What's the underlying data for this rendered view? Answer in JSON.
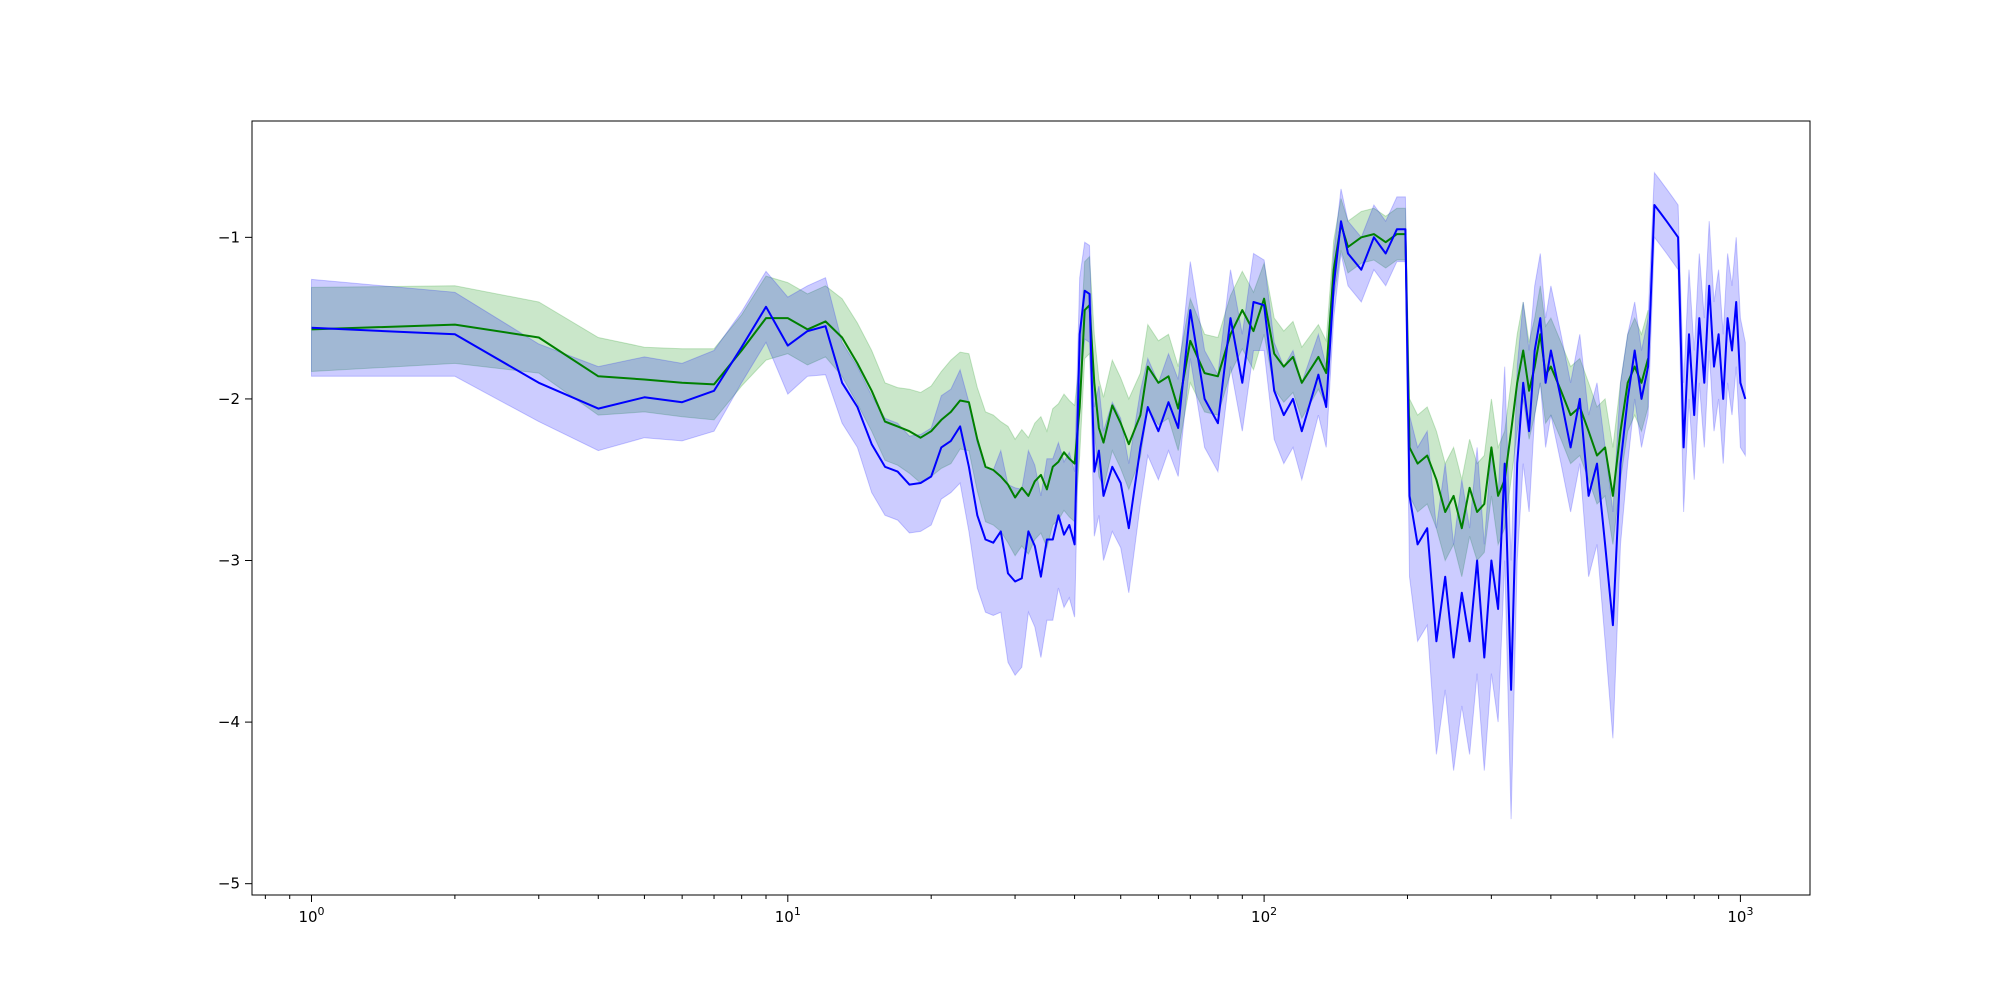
{
  "chart_data": {
    "type": "line",
    "xscale": "log",
    "xlim": [
      0.75,
      1400
    ],
    "ylim": [
      -5.07,
      -0.28
    ],
    "grid": false,
    "x_major_ticks": [
      {
        "value": 1,
        "base": "10",
        "exp": "0"
      },
      {
        "value": 10,
        "base": "10",
        "exp": "1"
      },
      {
        "value": 100,
        "base": "10",
        "exp": "2"
      },
      {
        "value": 1000,
        "base": "10",
        "exp": "3"
      }
    ],
    "y_ticks": [
      {
        "value": -1,
        "label": "−1"
      },
      {
        "value": -2,
        "label": "−2"
      },
      {
        "value": -3,
        "label": "−3"
      },
      {
        "value": -4,
        "label": "−4"
      },
      {
        "value": -5,
        "label": "−5"
      }
    ],
    "series": [
      {
        "color": "#008000",
        "band_color": "#2ca02c",
        "band_opacity": 0.25,
        "points": [
          [
            1,
            -1.57,
            0.26
          ],
          [
            2,
            -1.54,
            0.24
          ],
          [
            3,
            -1.62,
            0.22
          ],
          [
            4,
            -1.86,
            0.24
          ],
          [
            5,
            -1.88,
            0.2
          ],
          [
            6,
            -1.9,
            0.21
          ],
          [
            7,
            -1.91,
            0.22
          ],
          [
            8,
            -1.7,
            0.22
          ],
          [
            9,
            -1.5,
            0.26
          ],
          [
            10,
            -1.5,
            0.22
          ],
          [
            11,
            -1.57,
            0.22
          ],
          [
            12,
            -1.52,
            0.22
          ],
          [
            13,
            -1.62,
            0.24
          ],
          [
            14,
            -1.78,
            0.25
          ],
          [
            15,
            -1.95,
            0.25
          ],
          [
            16,
            -2.14,
            0.24
          ],
          [
            17,
            -2.17,
            0.24
          ],
          [
            18,
            -2.2,
            0.26
          ],
          [
            19,
            -2.24,
            0.28
          ],
          [
            20,
            -2.2,
            0.28
          ],
          [
            21,
            -2.13,
            0.3
          ],
          [
            22,
            -2.08,
            0.32
          ],
          [
            23,
            -2.01,
            0.3
          ],
          [
            24,
            -2.02,
            0.3
          ],
          [
            25,
            -2.25,
            0.32
          ],
          [
            26,
            -2.42,
            0.34
          ],
          [
            27,
            -2.44,
            0.34
          ],
          [
            28,
            -2.48,
            0.34
          ],
          [
            29,
            -2.53,
            0.36
          ],
          [
            30,
            -2.61,
            0.36
          ],
          [
            31,
            -2.55,
            0.36
          ],
          [
            32,
            -2.6,
            0.36
          ],
          [
            33,
            -2.51,
            0.36
          ],
          [
            34,
            -2.47,
            0.36
          ],
          [
            35,
            -2.56,
            0.36
          ],
          [
            36,
            -2.42,
            0.36
          ],
          [
            37,
            -2.39,
            0.36
          ],
          [
            38,
            -2.33,
            0.36
          ],
          [
            39,
            -2.37,
            0.36
          ],
          [
            40,
            -2.4,
            0.36
          ],
          [
            41,
            -2.05,
            0.3
          ],
          [
            42,
            -1.45,
            0.3
          ],
          [
            43,
            -1.42,
            0.3
          ],
          [
            44,
            -1.9,
            0.3
          ],
          [
            45,
            -2.18,
            0.3
          ],
          [
            46,
            -2.27,
            0.28
          ],
          [
            48,
            -2.04,
            0.28
          ],
          [
            50,
            -2.15,
            0.28
          ],
          [
            52,
            -2.28,
            0.28
          ],
          [
            55,
            -2.1,
            0.26
          ],
          [
            57,
            -1.8,
            0.26
          ],
          [
            60,
            -1.9,
            0.26
          ],
          [
            63,
            -1.86,
            0.26
          ],
          [
            66,
            -2.06,
            0.26
          ],
          [
            70,
            -1.64,
            0.26
          ],
          [
            75,
            -1.84,
            0.24
          ],
          [
            80,
            -1.86,
            0.24
          ],
          [
            85,
            -1.6,
            0.24
          ],
          [
            90,
            -1.45,
            0.24
          ],
          [
            95,
            -1.58,
            0.24
          ],
          [
            100,
            -1.38,
            0.22
          ],
          [
            105,
            -1.72,
            0.22
          ],
          [
            110,
            -1.8,
            0.22
          ],
          [
            115,
            -1.74,
            0.22
          ],
          [
            120,
            -1.9,
            0.22
          ],
          [
            130,
            -1.74,
            0.2
          ],
          [
            135,
            -1.84,
            0.2
          ],
          [
            140,
            -1.2,
            0.18
          ],
          [
            145,
            -0.92,
            0.16
          ],
          [
            150,
            -1.06,
            0.16
          ],
          [
            160,
            -1.0,
            0.16
          ],
          [
            170,
            -0.98,
            0.16
          ],
          [
            180,
            -1.03,
            0.16
          ],
          [
            190,
            -0.98,
            0.16
          ],
          [
            198,
            -0.98,
            0.16
          ],
          [
            202,
            -2.3,
            0.3
          ],
          [
            210,
            -2.4,
            0.3
          ],
          [
            220,
            -2.35,
            0.3
          ],
          [
            230,
            -2.5,
            0.3
          ],
          [
            240,
            -2.7,
            0.3
          ],
          [
            250,
            -2.6,
            0.3
          ],
          [
            260,
            -2.8,
            0.3
          ],
          [
            270,
            -2.55,
            0.3
          ],
          [
            280,
            -2.7,
            0.3
          ],
          [
            290,
            -2.65,
            0.3
          ],
          [
            300,
            -2.3,
            0.3
          ],
          [
            310,
            -2.6,
            0.3
          ],
          [
            320,
            -2.5,
            0.3
          ],
          [
            330,
            -2.2,
            0.3
          ],
          [
            340,
            -1.9,
            0.3
          ],
          [
            350,
            -1.7,
            0.3
          ],
          [
            360,
            -1.95,
            0.3
          ],
          [
            370,
            -1.8,
            0.3
          ],
          [
            380,
            -1.6,
            0.3
          ],
          [
            390,
            -1.85,
            0.3
          ],
          [
            400,
            -1.8,
            0.3
          ],
          [
            420,
            -1.95,
            0.3
          ],
          [
            440,
            -2.1,
            0.3
          ],
          [
            460,
            -2.05,
            0.3
          ],
          [
            480,
            -2.2,
            0.3
          ],
          [
            500,
            -2.35,
            0.3
          ],
          [
            520,
            -2.3,
            0.3
          ],
          [
            540,
            -2.6,
            0.3
          ],
          [
            560,
            -2.2,
            0.3
          ],
          [
            580,
            -1.9,
            0.3
          ],
          [
            600,
            -1.8,
            0.3
          ],
          [
            620,
            -1.9,
            0.3
          ],
          [
            640,
            -1.75,
            0.3
          ]
        ]
      },
      {
        "color": "#0000ff",
        "band_color": "#0000ff",
        "band_opacity": 0.2,
        "points": [
          [
            1,
            -1.56,
            0.3
          ],
          [
            2,
            -1.6,
            0.26
          ],
          [
            3,
            -1.9,
            0.24
          ],
          [
            4,
            -2.06,
            0.26
          ],
          [
            5,
            -1.99,
            0.25
          ],
          [
            6,
            -2.02,
            0.24
          ],
          [
            7,
            -1.95,
            0.25
          ],
          [
            8,
            -1.68,
            0.22
          ],
          [
            9,
            -1.43,
            0.22
          ],
          [
            10,
            -1.67,
            0.3
          ],
          [
            11,
            -1.58,
            0.28
          ],
          [
            12,
            -1.55,
            0.3
          ],
          [
            13,
            -1.9,
            0.25
          ],
          [
            14,
            -2.05,
            0.25
          ],
          [
            15,
            -2.28,
            0.3
          ],
          [
            16,
            -2.42,
            0.3
          ],
          [
            17,
            -2.45,
            0.3
          ],
          [
            18,
            -2.53,
            0.3
          ],
          [
            19,
            -2.52,
            0.3
          ],
          [
            20,
            -2.48,
            0.3
          ],
          [
            21,
            -2.3,
            0.32
          ],
          [
            22,
            -2.26,
            0.32
          ],
          [
            23,
            -2.17,
            0.35
          ],
          [
            24,
            -2.42,
            0.4
          ],
          [
            25,
            -2.72,
            0.45
          ],
          [
            26,
            -2.87,
            0.45
          ],
          [
            27,
            -2.89,
            0.45
          ],
          [
            28,
            -2.82,
            0.5
          ],
          [
            29,
            -3.08,
            0.55
          ],
          [
            30,
            -3.13,
            0.58
          ],
          [
            31,
            -3.11,
            0.55
          ],
          [
            32,
            -2.82,
            0.5
          ],
          [
            33,
            -2.91,
            0.5
          ],
          [
            34,
            -3.1,
            0.5
          ],
          [
            35,
            -2.87,
            0.5
          ],
          [
            36,
            -2.87,
            0.5
          ],
          [
            37,
            -2.72,
            0.45
          ],
          [
            38,
            -2.84,
            0.45
          ],
          [
            39,
            -2.78,
            0.45
          ],
          [
            40,
            -2.9,
            0.45
          ],
          [
            41,
            -1.6,
            0.35
          ],
          [
            42,
            -1.33,
            0.3
          ],
          [
            43,
            -1.35,
            0.3
          ],
          [
            44,
            -2.45,
            0.4
          ],
          [
            45,
            -2.32,
            0.4
          ],
          [
            46,
            -2.6,
            0.4
          ],
          [
            48,
            -2.42,
            0.4
          ],
          [
            50,
            -2.52,
            0.4
          ],
          [
            52,
            -2.8,
            0.4
          ],
          [
            55,
            -2.3,
            0.35
          ],
          [
            57,
            -2.05,
            0.3
          ],
          [
            60,
            -2.2,
            0.3
          ],
          [
            63,
            -2.02,
            0.3
          ],
          [
            66,
            -2.18,
            0.3
          ],
          [
            70,
            -1.45,
            0.3
          ],
          [
            75,
            -2.0,
            0.3
          ],
          [
            80,
            -2.15,
            0.3
          ],
          [
            85,
            -1.5,
            0.3
          ],
          [
            90,
            -1.9,
            0.3
          ],
          [
            95,
            -1.4,
            0.3
          ],
          [
            100,
            -1.42,
            0.28
          ],
          [
            105,
            -1.95,
            0.3
          ],
          [
            110,
            -2.1,
            0.3
          ],
          [
            115,
            -2.0,
            0.3
          ],
          [
            120,
            -2.2,
            0.3
          ],
          [
            130,
            -1.85,
            0.25
          ],
          [
            135,
            -2.05,
            0.25
          ],
          [
            140,
            -1.3,
            0.2
          ],
          [
            145,
            -0.9,
            0.2
          ],
          [
            150,
            -1.1,
            0.2
          ],
          [
            160,
            -1.2,
            0.2
          ],
          [
            170,
            -1.0,
            0.2
          ],
          [
            180,
            -1.1,
            0.2
          ],
          [
            190,
            -0.95,
            0.2
          ],
          [
            198,
            -0.95,
            0.2
          ],
          [
            202,
            -2.6,
            0.5
          ],
          [
            210,
            -2.9,
            0.6
          ],
          [
            220,
            -2.8,
            0.6
          ],
          [
            230,
            -3.5,
            0.7
          ],
          [
            240,
            -3.1,
            0.7
          ],
          [
            250,
            -3.6,
            0.7
          ],
          [
            260,
            -3.2,
            0.7
          ],
          [
            270,
            -3.5,
            0.7
          ],
          [
            280,
            -3.0,
            0.7
          ],
          [
            290,
            -3.6,
            0.7
          ],
          [
            300,
            -3.0,
            0.7
          ],
          [
            310,
            -3.3,
            0.7
          ],
          [
            320,
            -2.4,
            0.6
          ],
          [
            330,
            -3.8,
            0.8
          ],
          [
            340,
            -2.4,
            0.6
          ],
          [
            350,
            -1.9,
            0.5
          ],
          [
            360,
            -2.2,
            0.5
          ],
          [
            370,
            -1.7,
            0.4
          ],
          [
            380,
            -1.5,
            0.4
          ],
          [
            390,
            -1.9,
            0.4
          ],
          [
            400,
            -1.7,
            0.4
          ],
          [
            420,
            -2.0,
            0.4
          ],
          [
            440,
            -2.3,
            0.4
          ],
          [
            460,
            -2.0,
            0.4
          ],
          [
            480,
            -2.6,
            0.5
          ],
          [
            500,
            -2.4,
            0.5
          ],
          [
            520,
            -2.9,
            0.6
          ],
          [
            540,
            -3.4,
            0.7
          ],
          [
            560,
            -2.4,
            0.5
          ],
          [
            580,
            -2.0,
            0.4
          ],
          [
            600,
            -1.7,
            0.3
          ],
          [
            620,
            -2.0,
            0.3
          ],
          [
            640,
            -1.8,
            0.3
          ],
          [
            660,
            -0.8,
            0.2
          ],
          [
            680,
            -0.85,
            0.2
          ],
          [
            700,
            -0.9,
            0.2
          ],
          [
            720,
            -0.95,
            0.2
          ],
          [
            740,
            -1.0,
            0.2
          ],
          [
            760,
            -2.3,
            0.4
          ],
          [
            780,
            -1.6,
            0.4
          ],
          [
            800,
            -2.1,
            0.4
          ],
          [
            820,
            -1.5,
            0.4
          ],
          [
            840,
            -1.9,
            0.4
          ],
          [
            860,
            -1.3,
            0.4
          ],
          [
            880,
            -1.8,
            0.4
          ],
          [
            900,
            -1.6,
            0.4
          ],
          [
            920,
            -2.0,
            0.4
          ],
          [
            940,
            -1.5,
            0.4
          ],
          [
            960,
            -1.7,
            0.4
          ],
          [
            980,
            -1.4,
            0.4
          ],
          [
            1000,
            -1.9,
            0.4
          ],
          [
            1024,
            -2.0,
            0.35
          ]
        ]
      }
    ]
  }
}
